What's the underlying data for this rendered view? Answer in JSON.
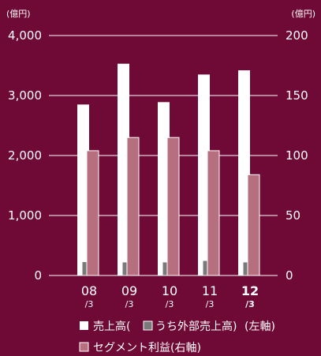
{
  "chart_data": {
    "type": "bar",
    "categories": [
      {
        "main": "08",
        "sub": "/3",
        "highlight": false
      },
      {
        "main": "09",
        "sub": "/3",
        "highlight": false
      },
      {
        "main": "10",
        "sub": "/3",
        "highlight": false
      },
      {
        "main": "11",
        "sub": "/3",
        "highlight": false
      },
      {
        "main": "12",
        "sub": "/3",
        "highlight": true
      }
    ],
    "left_axis": {
      "unit": "(億円)",
      "ylim": [
        0,
        4000
      ],
      "ticks": [
        "0",
        "1,000",
        "2,000",
        "3,000",
        "4,000"
      ]
    },
    "right_axis": {
      "unit": "(億円)",
      "ylim": [
        0,
        200
      ],
      "ticks": [
        "0",
        "50",
        "100",
        "150",
        "200"
      ]
    },
    "series": [
      {
        "name": "売上高",
        "axis": "left",
        "color": "#ffffff",
        "values": [
          2850,
          3530,
          2890,
          3350,
          3420
        ]
      },
      {
        "name": "うち外部売上高",
        "axis": "left",
        "color": "#7a7a7a",
        "values": [
          230,
          225,
          225,
          250,
          225
        ]
      },
      {
        "name": "セグメント利益",
        "axis": "right",
        "color": "#b56f7f",
        "values": [
          104,
          115,
          115,
          104,
          84
        ]
      }
    ],
    "grid": true,
    "legend": {
      "sales_open": "売上高(",
      "external": "うち外部売上高)",
      "left_axis_note": "(左軸)",
      "profit": "セグメント利益(右軸)"
    }
  }
}
